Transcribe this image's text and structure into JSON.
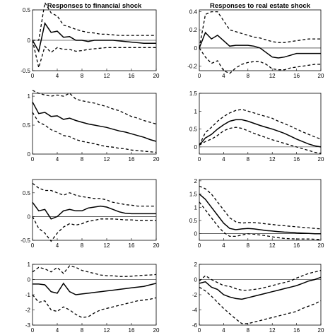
{
  "chart_data": [
    {
      "type": "line",
      "title": "Responses to financial shock",
      "xlim": [
        0,
        20
      ],
      "xticks": [
        0,
        4,
        8,
        12,
        16,
        20
      ],
      "ylim": [
        -0.5,
        0.5
      ],
      "yticks": [
        -0.5,
        0,
        0.5
      ],
      "ytick_labels": [
        "-0.5",
        "0",
        "0.5"
      ],
      "x": [
        0,
        1,
        2,
        3,
        4,
        5,
        6,
        7,
        8,
        9,
        10,
        11,
        12,
        13,
        14,
        15,
        16,
        17,
        18,
        19,
        20
      ],
      "series": [
        {
          "role": "irf",
          "values": [
            0,
            -0.18,
            0.28,
            0.13,
            0.15,
            0.05,
            0.06,
            0.0,
            0.0,
            -0.02,
            0.0,
            0.0,
            0.0,
            0.0,
            -0.01,
            -0.02,
            -0.03,
            -0.04,
            -0.05,
            -0.05,
            -0.05
          ]
        },
        {
          "role": "upper",
          "values": [
            0,
            0.0,
            0.62,
            0.45,
            0.4,
            0.25,
            0.22,
            0.18,
            0.15,
            0.13,
            0.12,
            0.1,
            0.1,
            0.09,
            0.08,
            0.08,
            0.08,
            0.08,
            0.08,
            0.08,
            0.08
          ]
        },
        {
          "role": "lower",
          "values": [
            0,
            -0.45,
            -0.1,
            -0.2,
            -0.12,
            -0.15,
            -0.15,
            -0.18,
            -0.17,
            -0.15,
            -0.14,
            -0.13,
            -0.12,
            -0.12,
            -0.12,
            -0.12,
            -0.12,
            -0.12,
            -0.12,
            -0.12,
            -0.12
          ]
        }
      ]
    },
    {
      "type": "line",
      "title": "Responses to real estate shock",
      "xlim": [
        0,
        20
      ],
      "xticks": [
        0,
        4,
        8,
        12,
        16,
        20
      ],
      "ylim": [
        -0.25,
        0.42
      ],
      "yticks": [
        -0.2,
        0,
        0.2,
        0.4
      ],
      "ytick_labels": [
        "-0.2",
        "0",
        "0.2",
        "0.4"
      ],
      "x": [
        0,
        1,
        2,
        3,
        4,
        5,
        6,
        7,
        8,
        9,
        10,
        11,
        12,
        13,
        14,
        15,
        16,
        17,
        18,
        19,
        20
      ],
      "series": [
        {
          "role": "irf",
          "values": [
            0,
            0.17,
            0.1,
            0.14,
            0.08,
            0.02,
            0.03,
            0.03,
            0.03,
            0.02,
            0.0,
            -0.05,
            -0.1,
            -0.11,
            -0.1,
            -0.08,
            -0.06,
            -0.06,
            -0.06,
            -0.06,
            -0.06
          ]
        },
        {
          "role": "upper",
          "values": [
            0,
            0.37,
            0.4,
            0.4,
            0.3,
            0.2,
            0.18,
            0.16,
            0.14,
            0.12,
            0.11,
            0.09,
            0.07,
            0.06,
            0.06,
            0.07,
            0.08,
            0.09,
            0.1,
            0.1,
            0.1
          ]
        },
        {
          "role": "lower",
          "values": [
            0,
            -0.1,
            -0.17,
            -0.14,
            -0.25,
            -0.28,
            -0.22,
            -0.18,
            -0.16,
            -0.15,
            -0.15,
            -0.18,
            -0.23,
            -0.24,
            -0.24,
            -0.22,
            -0.21,
            -0.2,
            -0.19,
            -0.18,
            -0.18
          ]
        }
      ]
    },
    {
      "type": "line",
      "title": "",
      "xlim": [
        0,
        20
      ],
      "xticks": [
        0,
        4,
        8,
        12,
        16,
        20
      ],
      "ylim": [
        0,
        1.05
      ],
      "yticks": [
        0,
        0.5,
        1
      ],
      "ytick_labels": [
        "0",
        "0.5",
        "1"
      ],
      "x": [
        0,
        1,
        2,
        3,
        4,
        5,
        6,
        7,
        8,
        9,
        10,
        11,
        12,
        13,
        14,
        15,
        16,
        17,
        18,
        19,
        20
      ],
      "series": [
        {
          "role": "irf",
          "values": [
            0.9,
            0.7,
            0.72,
            0.65,
            0.66,
            0.6,
            0.62,
            0.58,
            0.55,
            0.52,
            0.5,
            0.48,
            0.46,
            0.43,
            0.4,
            0.38,
            0.35,
            0.32,
            0.29,
            0.25,
            0.22
          ]
        },
        {
          "role": "upper",
          "values": [
            1.1,
            1.05,
            1.02,
            1.0,
            1.02,
            1.0,
            1.05,
            0.95,
            0.92,
            0.9,
            0.88,
            0.85,
            0.82,
            0.78,
            0.75,
            0.7,
            0.65,
            0.62,
            0.58,
            0.55,
            0.52
          ]
        },
        {
          "role": "lower",
          "values": [
            0.72,
            0.55,
            0.5,
            0.42,
            0.38,
            0.32,
            0.3,
            0.25,
            0.22,
            0.2,
            0.18,
            0.15,
            0.13,
            0.12,
            0.1,
            0.09,
            0.07,
            0.06,
            0.05,
            0.04,
            0.03
          ]
        }
      ]
    },
    {
      "type": "line",
      "title": "",
      "xlim": [
        0,
        20
      ],
      "xticks": [
        0,
        4,
        8,
        12,
        16,
        20
      ],
      "ylim": [
        -0.2,
        1.5
      ],
      "yticks": [
        0,
        0.5,
        1,
        1.5
      ],
      "ytick_labels": [
        "0",
        "0.5",
        "1",
        "1.5"
      ],
      "x": [
        0,
        1,
        2,
        3,
        4,
        5,
        6,
        7,
        8,
        9,
        10,
        11,
        12,
        13,
        14,
        15,
        16,
        17,
        18,
        19,
        20
      ],
      "series": [
        {
          "role": "irf",
          "values": [
            0.05,
            0.25,
            0.35,
            0.5,
            0.62,
            0.72,
            0.76,
            0.76,
            0.72,
            0.66,
            0.6,
            0.55,
            0.5,
            0.44,
            0.38,
            0.3,
            0.22,
            0.15,
            0.08,
            0.03,
            0.0
          ]
        },
        {
          "role": "upper",
          "values": [
            0.05,
            0.4,
            0.55,
            0.72,
            0.85,
            0.95,
            1.02,
            1.05,
            1.0,
            0.95,
            0.9,
            0.85,
            0.8,
            0.72,
            0.65,
            0.58,
            0.5,
            0.42,
            0.35,
            0.28,
            0.22
          ]
        },
        {
          "role": "lower",
          "values": [
            0.05,
            0.15,
            0.22,
            0.32,
            0.45,
            0.52,
            0.55,
            0.52,
            0.45,
            0.38,
            0.32,
            0.26,
            0.2,
            0.15,
            0.1,
            0.05,
            0.0,
            -0.05,
            -0.1,
            -0.15,
            -0.18
          ]
        }
      ]
    },
    {
      "type": "line",
      "title": "",
      "xlim": [
        0,
        20
      ],
      "xticks": [
        0,
        4,
        8,
        12,
        16,
        20
      ],
      "ylim": [
        -0.5,
        0.78
      ],
      "yticks": [
        -0.5,
        0,
        0.5
      ],
      "ytick_labels": [
        "-0.5",
        "0",
        "0.5"
      ],
      "x": [
        0,
        1,
        2,
        3,
        4,
        5,
        6,
        7,
        8,
        9,
        10,
        11,
        12,
        13,
        14,
        15,
        16,
        17,
        18,
        19,
        20
      ],
      "series": [
        {
          "role": "irf",
          "values": [
            0.3,
            0.12,
            0.15,
            -0.05,
            0.0,
            0.12,
            0.15,
            0.12,
            0.12,
            0.18,
            0.2,
            0.22,
            0.2,
            0.15,
            0.1,
            0.07,
            0.06,
            0.06,
            0.06,
            0.06,
            0.06
          ]
        },
        {
          "role": "upper",
          "values": [
            0.7,
            0.6,
            0.55,
            0.55,
            0.5,
            0.45,
            0.5,
            0.45,
            0.42,
            0.4,
            0.38,
            0.38,
            0.35,
            0.3,
            0.28,
            0.25,
            0.24,
            0.22,
            0.22,
            0.22,
            0.22
          ]
        },
        {
          "role": "lower",
          "values": [
            0.0,
            -0.25,
            -0.35,
            -0.52,
            -0.35,
            -0.22,
            -0.15,
            -0.18,
            -0.15,
            -0.1,
            -0.08,
            -0.05,
            -0.05,
            -0.05,
            -0.06,
            -0.07,
            -0.07,
            -0.08,
            -0.08,
            -0.08,
            -0.08
          ]
        }
      ]
    },
    {
      "type": "line",
      "title": "",
      "xlim": [
        0,
        20
      ],
      "xticks": [
        0,
        4,
        8,
        12,
        16,
        20
      ],
      "ylim": [
        -0.25,
        2.05
      ],
      "yticks": [
        0,
        0.5,
        1,
        1.5,
        2
      ],
      "ytick_labels": [
        "0",
        "0.5",
        "1",
        "1.5",
        "2"
      ],
      "x": [
        0,
        1,
        2,
        3,
        4,
        5,
        6,
        7,
        8,
        9,
        10,
        11,
        12,
        13,
        14,
        15,
        16,
        17,
        18,
        19,
        20
      ],
      "series": [
        {
          "role": "irf",
          "values": [
            1.5,
            1.3,
            1.0,
            0.7,
            0.4,
            0.2,
            0.15,
            0.18,
            0.2,
            0.18,
            0.15,
            0.12,
            0.1,
            0.08,
            0.06,
            0.05,
            0.03,
            0.02,
            0.01,
            0.0,
            0.0
          ]
        },
        {
          "role": "upper",
          "values": [
            1.8,
            1.7,
            1.5,
            1.2,
            0.9,
            0.6,
            0.45,
            0.4,
            0.42,
            0.42,
            0.4,
            0.37,
            0.35,
            0.32,
            0.3,
            0.28,
            0.26,
            0.24,
            0.22,
            0.2,
            0.18
          ]
        },
        {
          "role": "lower",
          "values": [
            1.2,
            0.9,
            0.6,
            0.3,
            0.05,
            -0.1,
            -0.1,
            -0.05,
            0.0,
            -0.02,
            -0.05,
            -0.08,
            -0.12,
            -0.15,
            -0.18,
            -0.19,
            -0.2,
            -0.2,
            -0.2,
            -0.21,
            -0.22
          ]
        }
      ]
    },
    {
      "type": "line",
      "title": "",
      "xlim": [
        0,
        20
      ],
      "xticks": [
        0,
        4,
        8,
        12,
        16,
        20
      ],
      "ylim": [
        -3,
        1
      ],
      "yticks": [
        -3,
        -2,
        -1,
        0,
        1
      ],
      "ytick_labels": [
        "-3",
        "-2",
        "-1",
        "0",
        "1"
      ],
      "x": [
        0,
        1,
        2,
        3,
        4,
        5,
        6,
        7,
        8,
        9,
        10,
        11,
        12,
        13,
        14,
        15,
        16,
        17,
        18,
        19,
        20
      ],
      "series": [
        {
          "role": "irf",
          "values": [
            -0.3,
            -0.3,
            -0.35,
            -0.8,
            -0.9,
            -0.25,
            -0.8,
            -1.0,
            -0.95,
            -0.9,
            -0.85,
            -0.8,
            -0.75,
            -0.7,
            -0.65,
            -0.6,
            -0.55,
            -0.5,
            -0.45,
            -0.35,
            -0.25
          ]
        },
        {
          "role": "upper",
          "values": [
            0.5,
            0.8,
            0.7,
            0.5,
            0.8,
            0.4,
            0.9,
            0.8,
            0.6,
            0.5,
            0.4,
            0.3,
            0.25,
            0.25,
            0.2,
            0.2,
            0.22,
            0.25,
            0.28,
            0.3,
            0.33
          ]
        },
        {
          "role": "lower",
          "values": [
            -1.0,
            -1.5,
            -1.4,
            -2.0,
            -2.1,
            -1.8,
            -2.0,
            -2.3,
            -2.5,
            -2.45,
            -2.2,
            -2.0,
            -1.9,
            -1.8,
            -1.7,
            -1.6,
            -1.5,
            -1.4,
            -1.35,
            -1.3,
            -1.2
          ]
        }
      ]
    },
    {
      "type": "line",
      "title": "",
      "xlim": [
        0,
        20
      ],
      "xticks": [
        0,
        4,
        8,
        12,
        16,
        20
      ],
      "ylim": [
        -6,
        2
      ],
      "yticks": [
        -6,
        -4,
        -2,
        0,
        2
      ],
      "ytick_labels": [
        "-6",
        "-4",
        "-2",
        "0",
        "2"
      ],
      "x": [
        0,
        1,
        2,
        3,
        4,
        5,
        6,
        7,
        8,
        9,
        10,
        11,
        12,
        13,
        14,
        15,
        16,
        17,
        18,
        19,
        20
      ],
      "series": [
        {
          "role": "irf",
          "values": [
            -0.5,
            -0.3,
            -1.0,
            -1.3,
            -2.0,
            -2.3,
            -2.5,
            -2.6,
            -2.4,
            -2.2,
            -2.0,
            -1.8,
            -1.6,
            -1.4,
            -1.2,
            -1.0,
            -0.8,
            -0.5,
            -0.2,
            0.0,
            0.3
          ]
        },
        {
          "role": "upper",
          "values": [
            -0.2,
            0.5,
            0.0,
            -0.4,
            -0.8,
            -0.9,
            -1.2,
            -1.4,
            -1.4,
            -1.3,
            -1.2,
            -1.0,
            -0.8,
            -0.6,
            -0.4,
            -0.2,
            0.2,
            0.5,
            0.8,
            1.0,
            1.2
          ]
        },
        {
          "role": "lower",
          "values": [
            -1.0,
            -1.5,
            -2.2,
            -3.0,
            -3.8,
            -4.5,
            -5.2,
            -5.8,
            -5.8,
            -5.6,
            -5.4,
            -5.2,
            -5.0,
            -4.8,
            -4.6,
            -4.4,
            -4.2,
            -3.8,
            -3.5,
            -3.2,
            -2.8
          ]
        }
      ]
    }
  ]
}
